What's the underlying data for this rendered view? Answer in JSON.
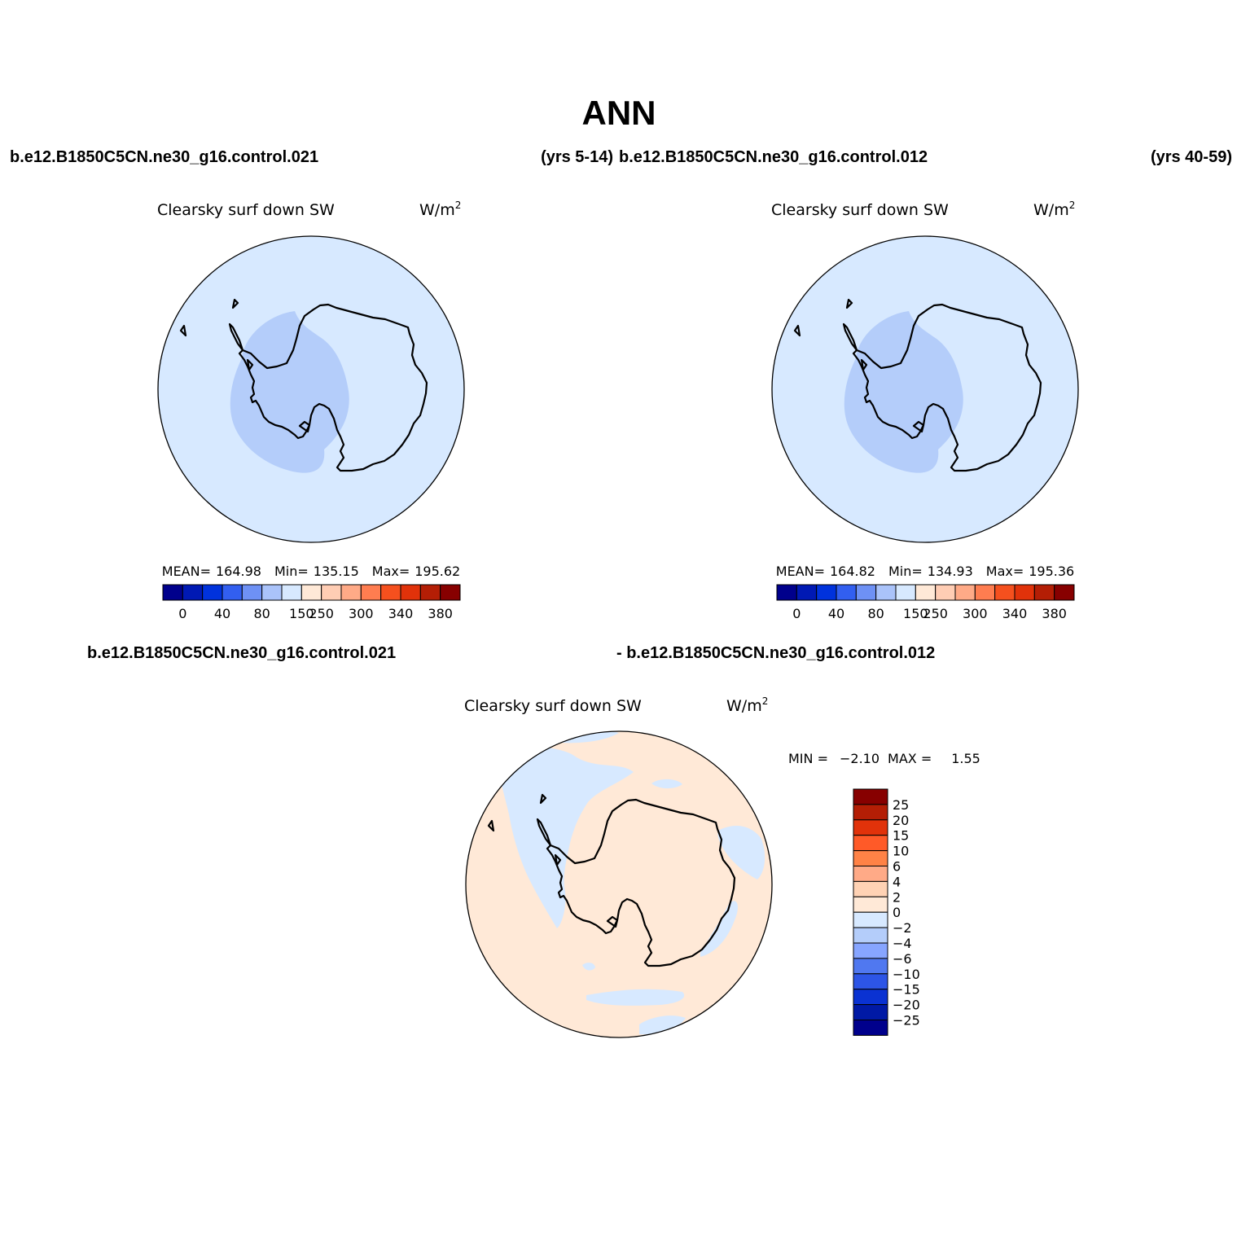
{
  "figure": {
    "title": "ANN",
    "top_left_case": "b.e12.B1850C5CN.ne30_g16.control.021",
    "top_left_years": "(yrs 5-14)",
    "top_right_case": "b.e12.B1850C5CN.ne30_g16.control.012",
    "top_right_years": "(yrs 40-59)",
    "diff_case_a": "b.e12.B1850C5CN.ne30_g16.control.021",
    "diff_case_b": "- b.e12.B1850C5CN.ne30_g16.control.012"
  },
  "panels": [
    {
      "variable": "Clearsky surf down SW",
      "units_base": "W/m",
      "units_exp": "2",
      "stats": {
        "mean_label": "MEAN=",
        "mean": "164.98",
        "min_label": "Min=",
        "min": "135.15",
        "max_label": "Max=",
        "max": "195.62"
      }
    },
    {
      "variable": "Clearsky surf down SW",
      "units_base": "W/m",
      "units_exp": "2",
      "stats": {
        "mean_label": "MEAN=",
        "mean": "164.82",
        "min_label": "Min=",
        "min": "134.93",
        "max_label": "Max=",
        "max": "195.36"
      }
    },
    {
      "variable": "Clearsky surf down SW",
      "units_base": "W/m",
      "units_exp": "2",
      "stats": {
        "min_label": "MIN =",
        "min": "−2.10",
        "max_label": "MAX =",
        "max": "1.55"
      }
    }
  ],
  "colorbar_main": {
    "colors": [
      "#00008c",
      "#0019b4",
      "#0032dc",
      "#325ff0",
      "#6e91f5",
      "#aac3fa",
      "#d7e9ff",
      "#ffe9d7",
      "#ffcdb4",
      "#ffaa87",
      "#ff7d50",
      "#f5501e",
      "#e1320a",
      "#b41e05",
      "#870000"
    ],
    "tick_labels": [
      "0",
      "40",
      "80",
      "150",
      "250",
      "300",
      "340",
      "380"
    ]
  },
  "colorbar_diff": {
    "colors": [
      "#870000",
      "#b41e05",
      "#e1320a",
      "#ff5a28",
      "#ff8246",
      "#ffaa87",
      "#ffd2b4",
      "#ffe9d7",
      "#d7e9ff",
      "#b4cdfa",
      "#87a5ff",
      "#5078f0",
      "#2d55e6",
      "#0a32d2",
      "#0019a5",
      "#00008c"
    ],
    "tick_labels": [
      "25",
      "20",
      "15",
      "10",
      "6",
      "4",
      "2",
      "0",
      "−2",
      "−4",
      "−6",
      "−10",
      "−15",
      "−20",
      "−25"
    ]
  },
  "fill_colors": {
    "ocean_main": "#d7e9ff",
    "interior_band": "#b4cdfa",
    "diff_positive": "#ffe9d7",
    "diff_negative": "#d7e9ff"
  },
  "region": "Antarctica (south polar stereographic)"
}
